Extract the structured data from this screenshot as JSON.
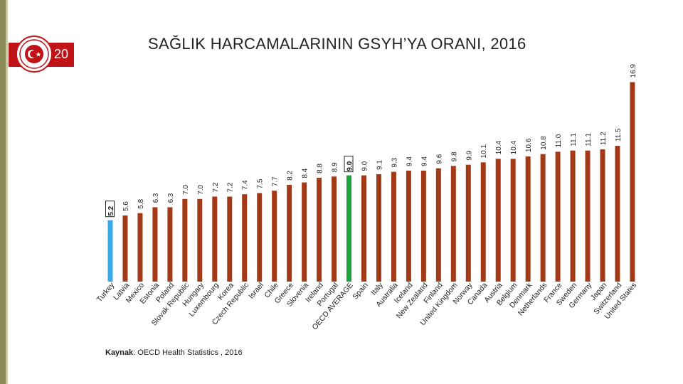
{
  "page": {
    "number": "20",
    "title": "SAĞLIK HARCAMALARININ GSYH’YA ORANI, 2016",
    "source_label": "Kaynak",
    "source_text": ": OECD Health Statistics , 2016",
    "logo_icon": "ministry-seal-icon"
  },
  "colors": {
    "bar": "#a33a17",
    "highlight_turkey": "#39a9ea",
    "highlight_oecd": "#1ea33a",
    "accent": "#c01317"
  },
  "chart_data": {
    "type": "bar",
    "title": "SAĞLIK HARCAMALARININ GSYH’YA ORANI, 2016",
    "xlabel": "",
    "ylabel": "",
    "grid": false,
    "categories": [
      "Turkey",
      "Latvia",
      "Mexico",
      "Estonia",
      "Poland",
      "Slovak Republic",
      "Hungary",
      "Luxembourg",
      "Korea",
      "Czech Republic",
      "Israel",
      "Chile",
      "Greece",
      "Slovenia",
      "Ireland",
      "Portugal",
      "OECD AVERAGE",
      "Spain",
      "Italy",
      "Australia",
      "Iceland",
      "New Zealand",
      "Finland",
      "United Kingdom",
      "Norway",
      "Canada",
      "Austria",
      "Belgium",
      "Denmark",
      "Netherlands",
      "France",
      "Sweden",
      "Germany",
      "Japan",
      "Switzerland",
      "United States"
    ],
    "values": [
      5.2,
      5.6,
      5.8,
      6.3,
      6.3,
      7.0,
      7.0,
      7.2,
      7.2,
      7.4,
      7.5,
      7.7,
      8.2,
      8.4,
      8.8,
      8.9,
      9.0,
      9.0,
      9.1,
      9.3,
      9.4,
      9.4,
      9.6,
      9.8,
      9.9,
      10.1,
      10.4,
      10.4,
      10.6,
      10.8,
      11.0,
      11.1,
      11.1,
      11.2,
      11.5,
      16.9
    ],
    "value_labels": [
      "5.2",
      "5.6",
      "5.8",
      "6.3",
      "6.3",
      "7.0",
      "7.0",
      "7.2",
      "7.2",
      "7.4",
      "7.5",
      "7.7",
      "8.2",
      "8.4",
      "8.8",
      "8.9",
      "9.0",
      "9.0",
      "9.1",
      "9.3",
      "9.4",
      "9.4",
      "9.6",
      "9.8",
      "9.9",
      "10.1",
      "10.4",
      "10.4",
      "10.6",
      "10.8",
      "11.0",
      "11.1",
      "11.1",
      "11.2",
      "11.5",
      "16.9"
    ],
    "highlighted": {
      "Turkey": "highlight_turkey",
      "OECD AVERAGE": "highlight_oecd"
    },
    "boxed_labels": [
      "Turkey",
      "OECD AVERAGE"
    ]
  }
}
